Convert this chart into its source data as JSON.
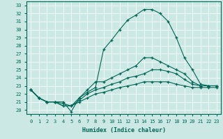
{
  "xlabel": "Humidex (Indice chaleur)",
  "background_color": "#cce8e4",
  "grid_color": "#ffffff",
  "line_color": "#006655",
  "xlim": [
    -0.5,
    23.5
  ],
  "ylim": [
    19.5,
    33.5
  ],
  "yticks": [
    20,
    21,
    22,
    23,
    24,
    25,
    26,
    27,
    28,
    29,
    30,
    31,
    32,
    33
  ],
  "xticks": [
    0,
    1,
    2,
    3,
    4,
    5,
    6,
    7,
    8,
    9,
    10,
    11,
    12,
    13,
    14,
    15,
    16,
    17,
    18,
    19,
    20,
    21,
    22,
    23
  ],
  "line1": {
    "x": [
      0,
      1,
      2,
      3,
      4,
      5,
      6,
      7,
      8,
      9,
      10,
      11,
      12,
      13,
      14,
      15,
      16,
      17,
      18,
      19,
      20,
      21,
      22,
      23
    ],
    "y": [
      22.5,
      21.5,
      21.0,
      21.0,
      21.0,
      19.8,
      21.5,
      22.2,
      22.8,
      27.5,
      28.7,
      30.0,
      31.2,
      31.8,
      32.5,
      32.5,
      32.0,
      31.0,
      29.0,
      26.5,
      25.0,
      23.2,
      23.0,
      23.0
    ]
  },
  "line2": {
    "x": [
      0,
      1,
      2,
      3,
      4,
      5,
      6,
      7,
      8,
      9,
      10,
      11,
      12,
      13,
      14,
      15,
      16,
      17,
      18,
      19,
      20,
      21,
      22,
      23
    ],
    "y": [
      22.5,
      21.5,
      21.0,
      21.0,
      20.5,
      20.5,
      21.5,
      22.5,
      23.5,
      23.5,
      24.0,
      24.5,
      25.0,
      25.5,
      26.5,
      26.5,
      26.0,
      25.5,
      25.0,
      24.5,
      23.5,
      23.0,
      23.0,
      23.0
    ]
  },
  "line3": {
    "x": [
      0,
      1,
      2,
      3,
      4,
      5,
      6,
      7,
      8,
      9,
      10,
      11,
      12,
      13,
      14,
      15,
      16,
      17,
      18,
      19,
      20,
      21,
      22,
      23
    ],
    "y": [
      22.5,
      21.5,
      21.0,
      21.0,
      20.5,
      20.5,
      21.2,
      22.0,
      22.5,
      22.8,
      23.2,
      23.5,
      24.0,
      24.2,
      24.5,
      25.0,
      25.0,
      24.8,
      24.5,
      23.8,
      23.2,
      23.0,
      23.0,
      23.0
    ]
  },
  "line4": {
    "x": [
      0,
      1,
      2,
      3,
      4,
      5,
      6,
      7,
      8,
      9,
      10,
      11,
      12,
      13,
      14,
      15,
      16,
      17,
      18,
      19,
      20,
      21,
      22,
      23
    ],
    "y": [
      22.5,
      21.5,
      21.0,
      21.0,
      20.8,
      20.5,
      21.0,
      21.5,
      22.0,
      22.2,
      22.5,
      22.8,
      23.0,
      23.2,
      23.5,
      23.5,
      23.5,
      23.5,
      23.2,
      23.0,
      22.8,
      22.8,
      22.8,
      22.8
    ]
  }
}
